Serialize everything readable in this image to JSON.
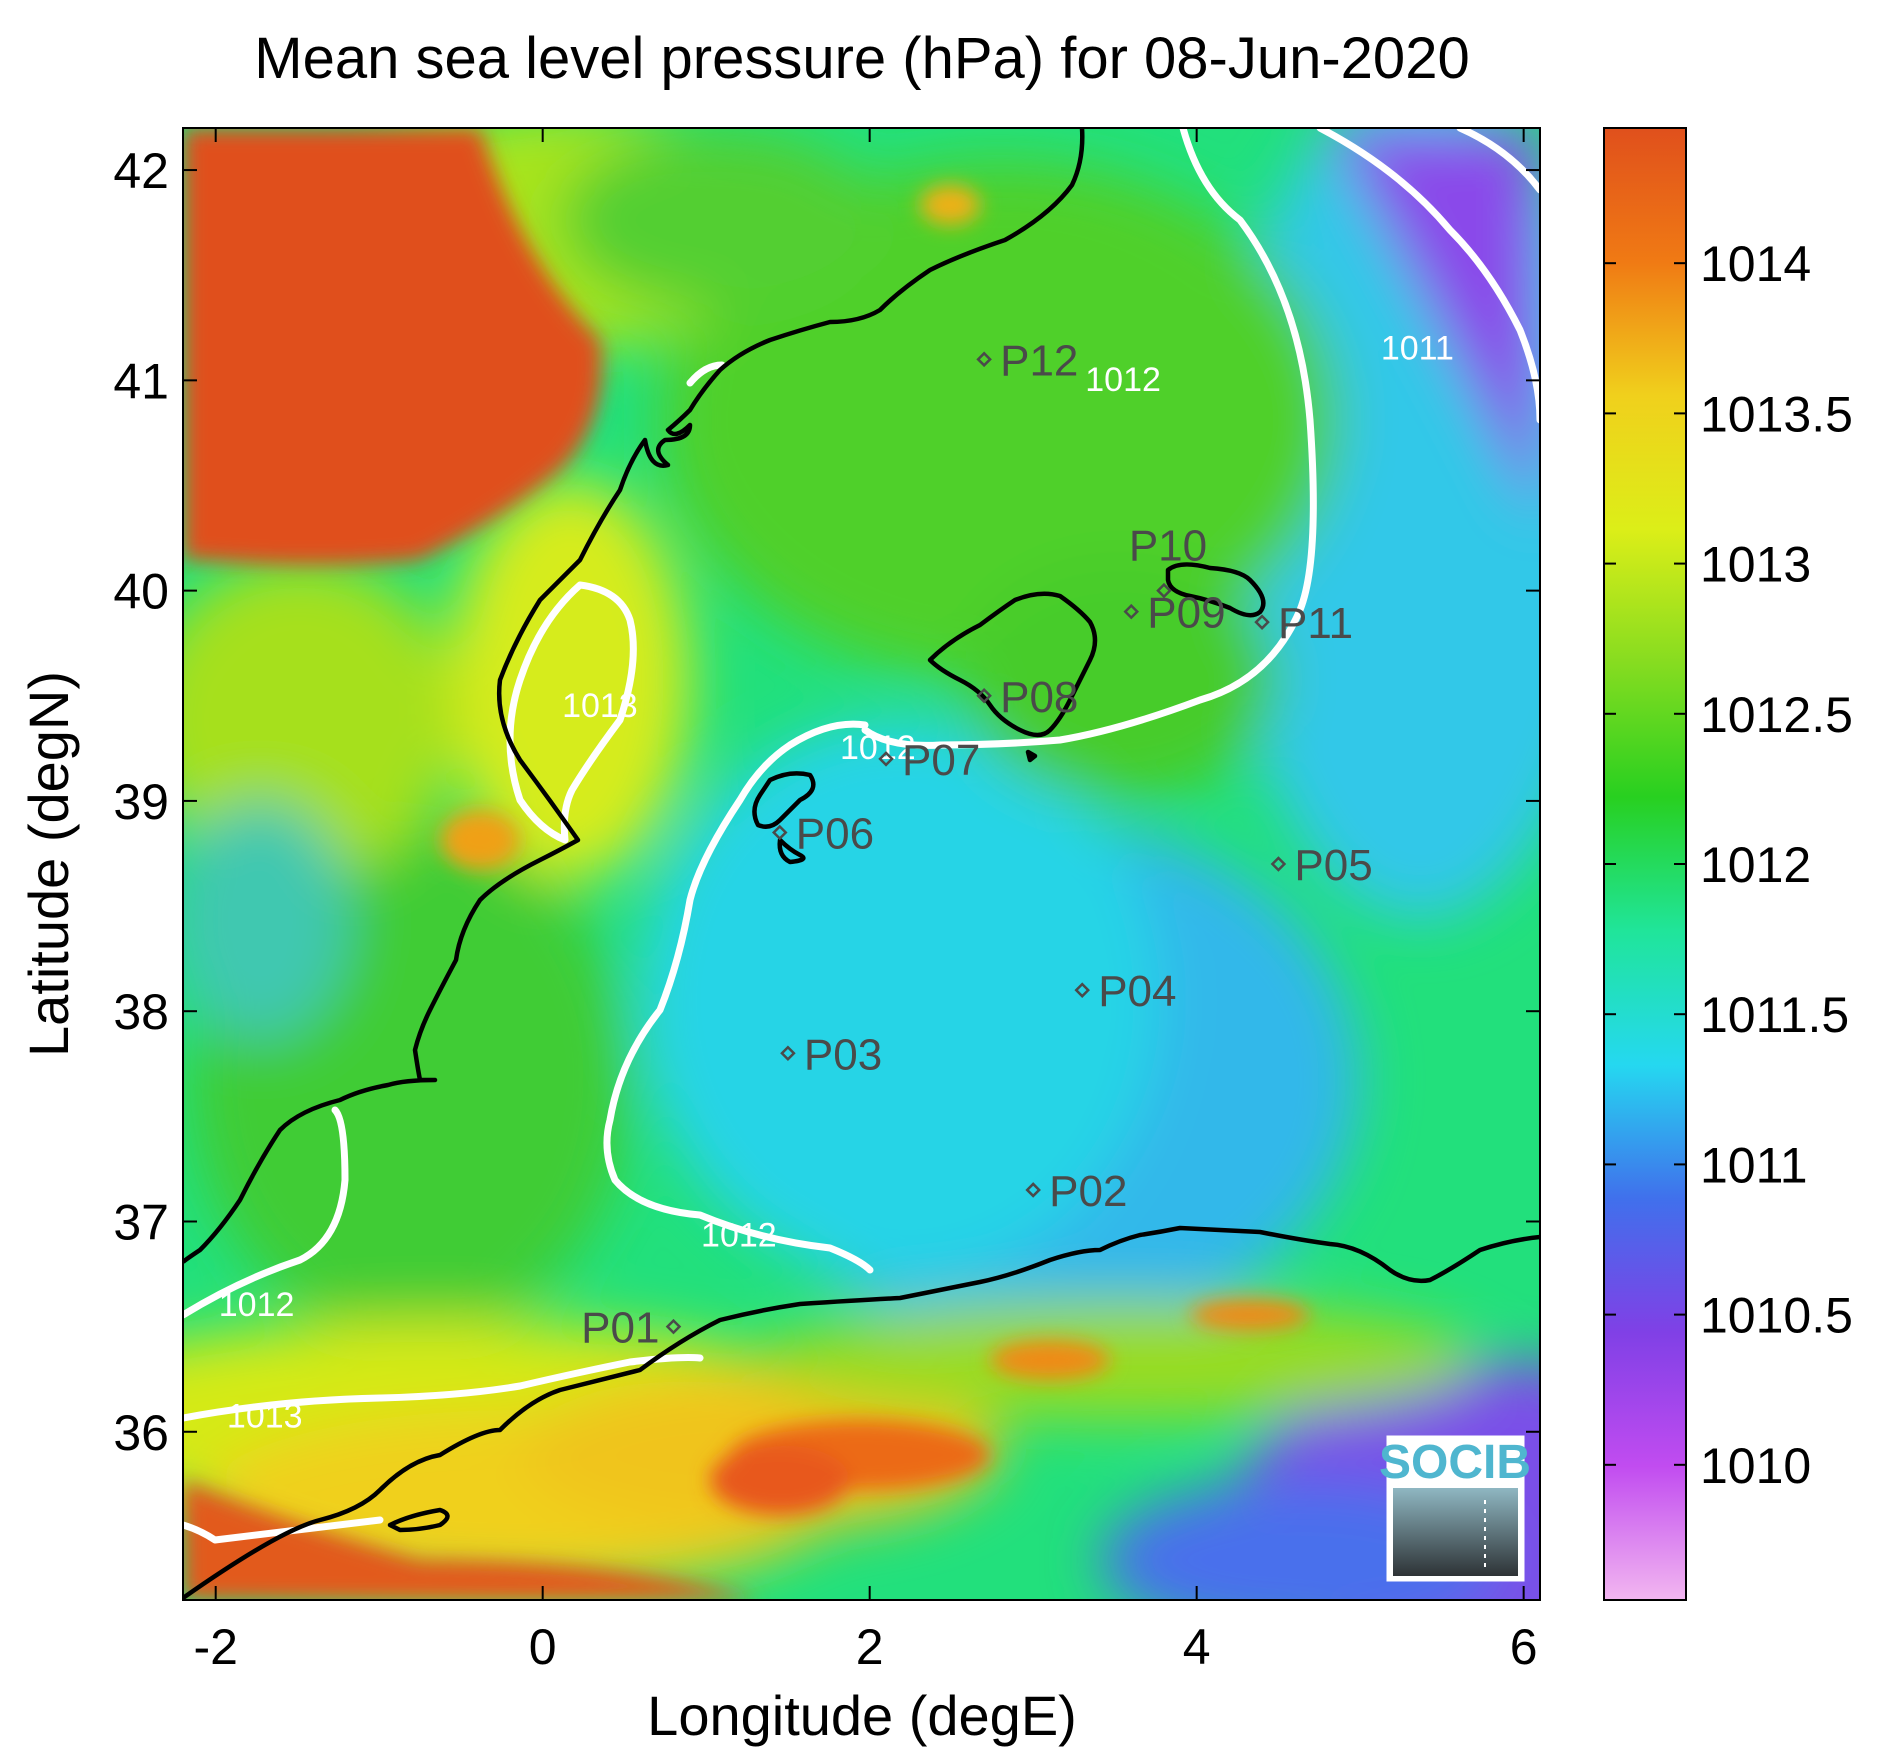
{
  "chart_data": {
    "type": "heatmap",
    "title": "Mean sea level pressure (hPa) for 08-Jun-2020",
    "xlabel": "Longitude (degE)",
    "ylabel": "Latitude (degN)",
    "xlim": [
      -2.2,
      6.1
    ],
    "ylim": [
      35.2,
      42.2
    ],
    "x_ticks": [
      "-2",
      "0",
      "2",
      "4",
      "6"
    ],
    "x_tick_values": [
      -2,
      0,
      2,
      4,
      6
    ],
    "y_ticks": [
      "42",
      "41",
      "40",
      "39",
      "38",
      "37",
      "36"
    ],
    "y_tick_values": [
      42,
      41,
      40,
      39,
      38,
      37,
      36
    ],
    "colorbar": {
      "range": [
        1009.55,
        1014.45
      ],
      "ticks": [
        "1014",
        "1013.5",
        "1013",
        "1012.5",
        "1012",
        "1011.5",
        "1011",
        "1010.5",
        "1010"
      ],
      "tick_values": [
        1014,
        1013.5,
        1013,
        1012.5,
        1012,
        1011.5,
        1011,
        1010.5,
        1010
      ],
      "colors": [
        "#f2b6f0",
        "#c14cf0",
        "#8040e6",
        "#4070ec",
        "#25d8f0",
        "#20e59a",
        "#28d020",
        "#86dc20",
        "#dcee18",
        "#f0d01c",
        "#f07a14",
        "#e0501c"
      ]
    },
    "contour_labels": [
      {
        "text": "1012",
        "lon": 3.55,
        "lat": 40.95
      },
      {
        "text": "1011",
        "lon": 5.35,
        "lat": 41.1
      },
      {
        "text": "1013",
        "lon": 0.35,
        "lat": 39.4
      },
      {
        "text": "1012",
        "lon": 2.05,
        "lat": 39.2
      },
      {
        "text": "1012",
        "lon": 1.2,
        "lat": 36.88
      },
      {
        "text": "1012",
        "lon": -1.75,
        "lat": 36.55
      },
      {
        "text": "1013",
        "lon": -1.7,
        "lat": 36.02
      }
    ],
    "stations": [
      {
        "name": "P01",
        "lon": 0.8,
        "lat": 36.5
      },
      {
        "name": "P02",
        "lon": 3.0,
        "lat": 37.15
      },
      {
        "name": "P03",
        "lon": 1.5,
        "lat": 37.8
      },
      {
        "name": "P04",
        "lon": 3.3,
        "lat": 38.1
      },
      {
        "name": "P05",
        "lon": 4.5,
        "lat": 38.7
      },
      {
        "name": "P06",
        "lon": 1.45,
        "lat": 38.85
      },
      {
        "name": "P07",
        "lon": 2.1,
        "lat": 39.2
      },
      {
        "name": "P08",
        "lon": 2.7,
        "lat": 39.5
      },
      {
        "name": "P09",
        "lon": 3.6,
        "lat": 39.9
      },
      {
        "name": "P10",
        "lon": 3.8,
        "lat": 40.0
      },
      {
        "name": "P11",
        "lon": 4.4,
        "lat": 39.85
      },
      {
        "name": "P12",
        "lon": 2.7,
        "lat": 41.1
      }
    ],
    "grid": false
  },
  "logo": {
    "text": "SOCIB"
  },
  "colors": {
    "contour": "#ffffff",
    "coast": "#000000",
    "station": "#4a4a4a"
  }
}
